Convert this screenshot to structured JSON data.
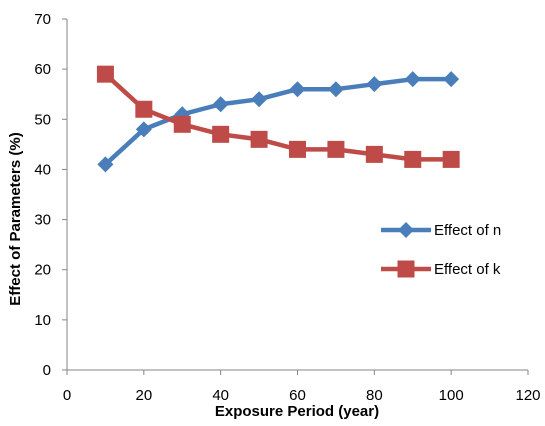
{
  "chart_data": {
    "type": "line",
    "title": "",
    "xlabel": "Exposure Period (year)",
    "ylabel": "Effect of Parameters (%)",
    "xlim": [
      0,
      120
    ],
    "ylim": [
      0,
      70
    ],
    "xticks": [
      0,
      20,
      40,
      60,
      80,
      100,
      120
    ],
    "yticks": [
      0,
      10,
      20,
      30,
      40,
      50,
      60,
      70
    ],
    "grid": false,
    "legend_position": "right",
    "x": [
      10,
      20,
      30,
      40,
      50,
      60,
      70,
      80,
      90,
      100
    ],
    "series": [
      {
        "name": "Effect of n",
        "color": "#4a7ebb",
        "marker": "diamond",
        "values": [
          41,
          48,
          51,
          53,
          54,
          56,
          56,
          57,
          58,
          58
        ]
      },
      {
        "name": "Effect of k",
        "color": "#be4b48",
        "marker": "square",
        "values": [
          59,
          52,
          49,
          47,
          46,
          44,
          44,
          43,
          42,
          42
        ]
      }
    ]
  }
}
